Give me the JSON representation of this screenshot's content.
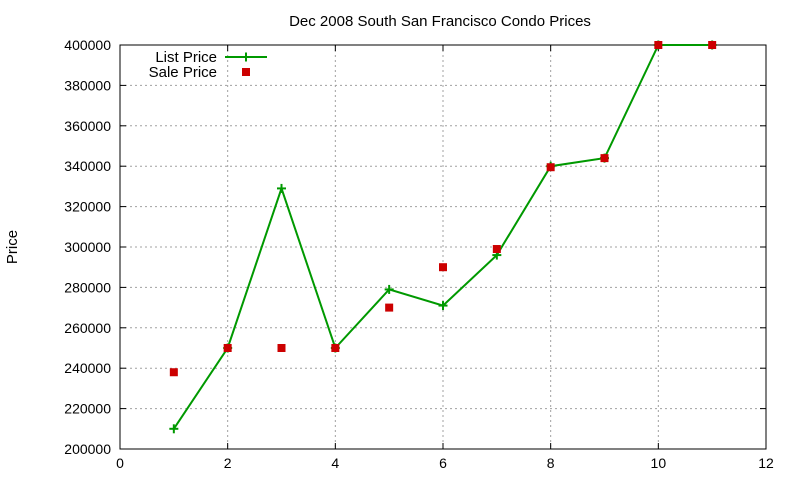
{
  "chart_data": {
    "type": "line",
    "title": "Dec 2008 South San Francisco Condo Prices",
    "xlabel": "",
    "ylabel": "Price",
    "xlim": [
      0,
      12
    ],
    "ylim": [
      200000,
      400000
    ],
    "xticks": [
      0,
      2,
      4,
      6,
      8,
      10,
      12
    ],
    "yticks": [
      200000,
      220000,
      240000,
      260000,
      280000,
      300000,
      320000,
      340000,
      360000,
      380000,
      400000
    ],
    "grid": true,
    "legend_position": "top-left",
    "series": [
      {
        "name": "List Price",
        "style": "line-with-plus-markers",
        "color": "#009900",
        "points": [
          {
            "x": 1,
            "y": 210000
          },
          {
            "x": 2,
            "y": 250000
          },
          {
            "x": 3,
            "y": 329000
          },
          {
            "x": 4,
            "y": 250000
          },
          {
            "x": 5,
            "y": 279000
          },
          {
            "x": 6,
            "y": 271000
          },
          {
            "x": 7,
            "y": 296000
          },
          {
            "x": 8,
            "y": 340000
          },
          {
            "x": 9,
            "y": 344000
          },
          {
            "x": 10,
            "y": 400000
          },
          {
            "x": 11,
            "y": 400000
          }
        ]
      },
      {
        "name": "Sale Price",
        "style": "square-markers",
        "color": "#cc0000",
        "points": [
          {
            "x": 1,
            "y": 238000
          },
          {
            "x": 2,
            "y": 250000
          },
          {
            "x": 3,
            "y": 250000
          },
          {
            "x": 4,
            "y": 250000
          },
          {
            "x": 5,
            "y": 270000
          },
          {
            "x": 6,
            "y": 290000
          },
          {
            "x": 7,
            "y": 299000
          },
          {
            "x": 8,
            "y": 339500
          },
          {
            "x": 9,
            "y": 344000
          },
          {
            "x": 10,
            "y": 400000
          },
          {
            "x": 11,
            "y": 400000
          }
        ]
      }
    ]
  }
}
